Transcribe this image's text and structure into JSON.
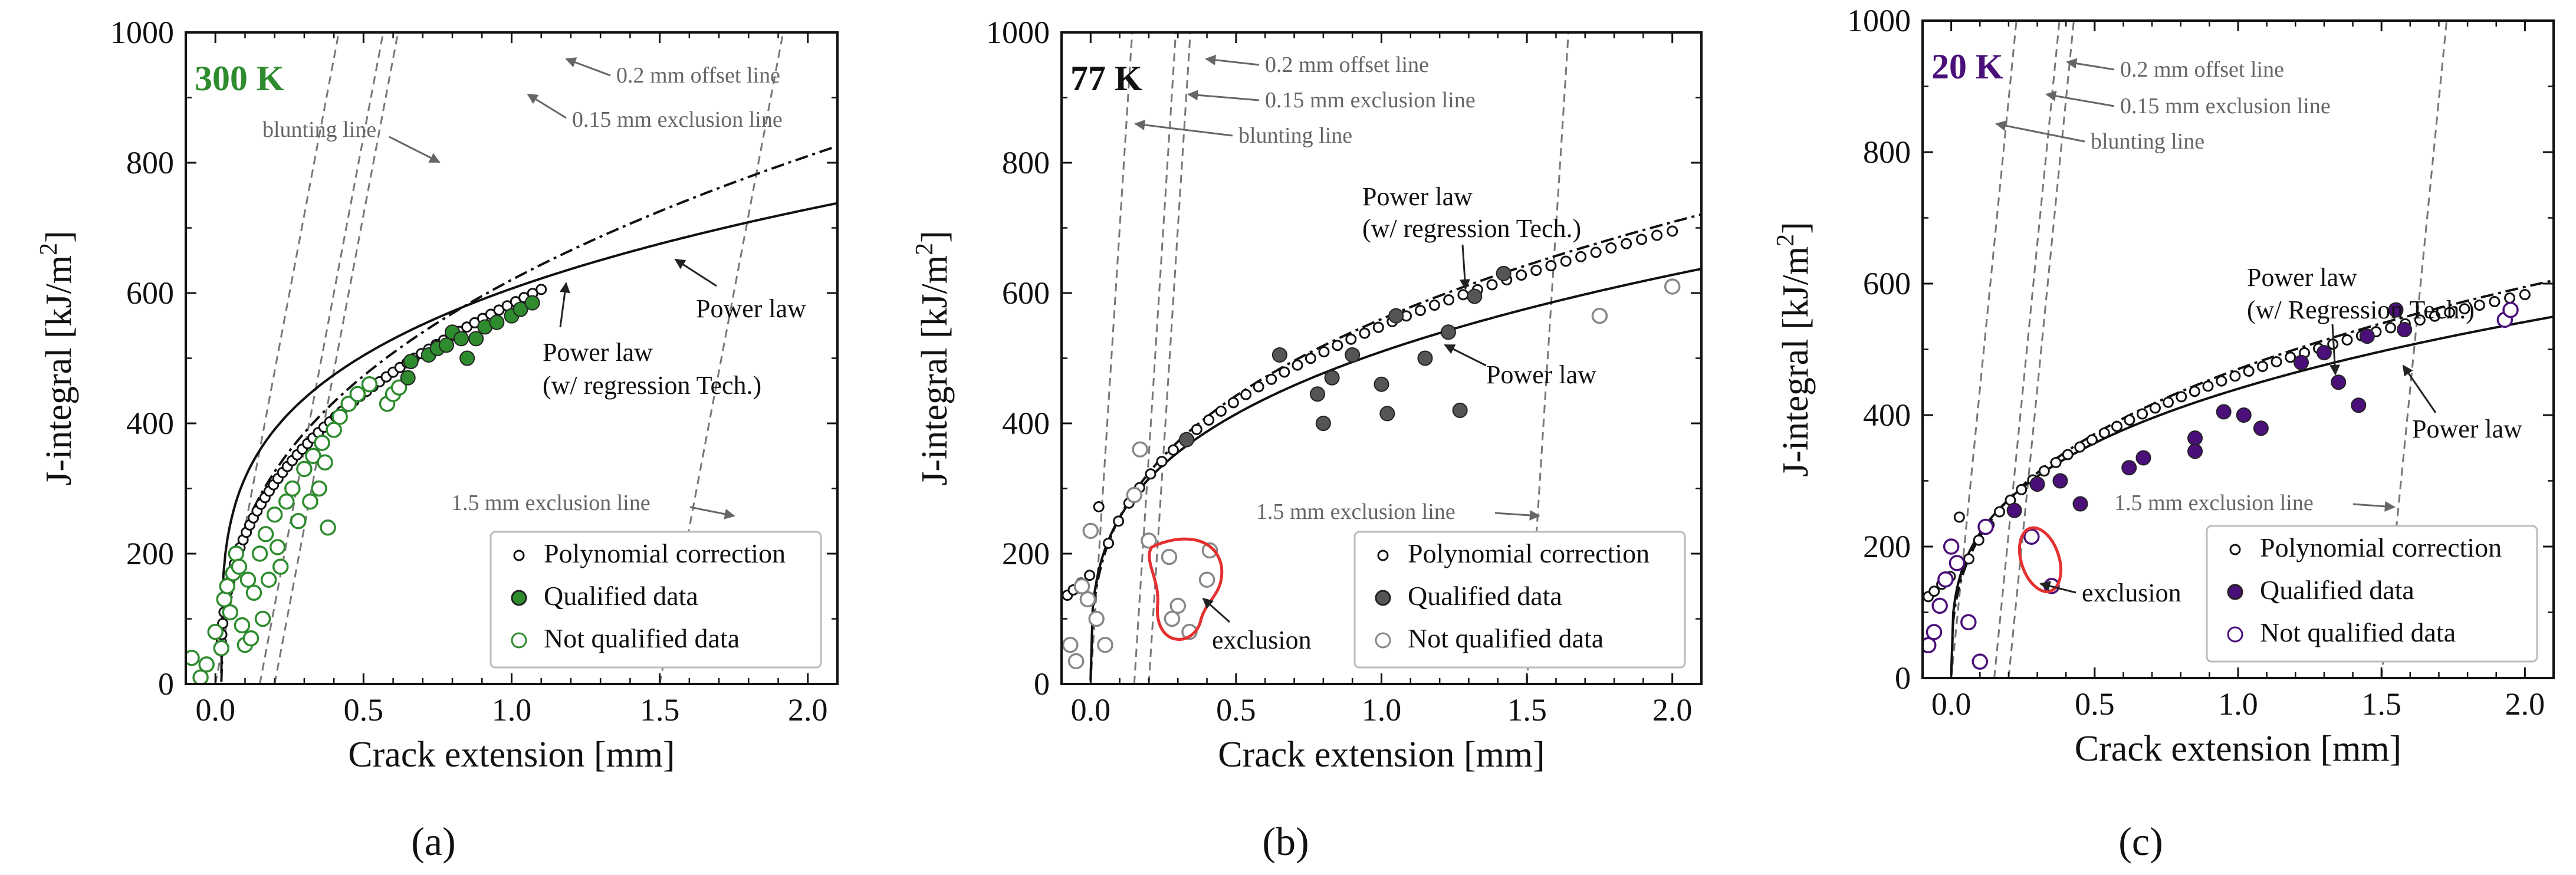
{
  "figure": {
    "panel_labels": [
      "(a)",
      "(b)",
      "(c)"
    ]
  },
  "chart_data": [
    {
      "type": "scatter",
      "panel": "(a)",
      "temperature_label": "300 K",
      "accent": "#2e8b2e",
      "xlabel": "Crack extension [mm]",
      "ylabel_main": "J-integral [kJ/m",
      "ylabel_sup": "2",
      "ylabel_end": "]",
      "xlim": [
        -0.1,
        2.1
      ],
      "ylim": [
        0,
        1000
      ],
      "xticks": [
        "0.0",
        "0.5",
        "1.0",
        "1.5",
        "2.0"
      ],
      "yticks": [
        "0",
        "200",
        "400",
        "600",
        "800",
        "1000"
      ],
      "legend": [
        "Polynomial correction",
        "Qualified data",
        "Not qualified data"
      ],
      "annotations": {
        "offset": "0.2 mm offset line",
        "excl015": "0.15 mm exclusion line",
        "blunting": "blunting line",
        "excl15": "1.5 mm exclusion line",
        "power": "Power law",
        "regress1": "Power law",
        "regress2": "(w/ regression Tech.)"
      },
      "power_law": {
        "C": 610,
        "n": 0.26,
        "x0": 0.02
      },
      "regression": {
        "C": 625,
        "n": 0.38,
        "x0": 0.02
      },
      "construction_lines": {
        "slope": 2400,
        "offsets": [
          0,
          0.15,
          0.2,
          1.5
        ]
      },
      "polynomial_range": [
        0.02,
        1.1
      ],
      "qualified": [
        [
          0.65,
          470
        ],
        [
          0.66,
          495
        ],
        [
          0.72,
          505
        ],
        [
          0.75,
          515
        ],
        [
          0.78,
          520
        ],
        [
          0.8,
          540
        ],
        [
          0.83,
          530
        ],
        [
          0.85,
          500
        ],
        [
          0.88,
          530
        ],
        [
          0.91,
          548
        ],
        [
          0.95,
          555
        ],
        [
          1.0,
          565
        ],
        [
          1.03,
          575
        ],
        [
          1.07,
          585
        ]
      ],
      "not_qualified": [
        [
          -0.08,
          40
        ],
        [
          -0.05,
          10
        ],
        [
          -0.03,
          30
        ],
        [
          0.0,
          80
        ],
        [
          0.02,
          55
        ],
        [
          0.03,
          130
        ],
        [
          0.04,
          150
        ],
        [
          0.05,
          110
        ],
        [
          0.06,
          170
        ],
        [
          0.07,
          200
        ],
        [
          0.08,
          180
        ],
        [
          0.09,
          90
        ],
        [
          0.1,
          60
        ],
        [
          0.11,
          160
        ],
        [
          0.12,
          70
        ],
        [
          0.13,
          140
        ],
        [
          0.15,
          200
        ],
        [
          0.16,
          100
        ],
        [
          0.17,
          230
        ],
        [
          0.18,
          160
        ],
        [
          0.2,
          260
        ],
        [
          0.21,
          210
        ],
        [
          0.22,
          180
        ],
        [
          0.24,
          280
        ],
        [
          0.26,
          300
        ],
        [
          0.28,
          250
        ],
        [
          0.3,
          330
        ],
        [
          0.32,
          280
        ],
        [
          0.33,
          350
        ],
        [
          0.35,
          300
        ],
        [
          0.36,
          370
        ],
        [
          0.37,
          340
        ],
        [
          0.38,
          240
        ],
        [
          0.4,
          390
        ],
        [
          0.42,
          410
        ],
        [
          0.45,
          430
        ],
        [
          0.48,
          445
        ],
        [
          0.52,
          460
        ],
        [
          0.58,
          430
        ],
        [
          0.6,
          445
        ],
        [
          0.62,
          455
        ]
      ]
    },
    {
      "type": "scatter",
      "panel": "(b)",
      "temperature_label": "77 K",
      "accent": "#111111",
      "xlabel": "Crack extension [mm]",
      "ylabel_main": "J-integral [kJ/m",
      "ylabel_sup": "2",
      "ylabel_end": "]",
      "xlim": [
        -0.1,
        2.1
      ],
      "ylim": [
        0,
        1000
      ],
      "xticks": [
        "0.0",
        "0.5",
        "1.0",
        "1.5",
        "2.0"
      ],
      "yticks": [
        "0",
        "200",
        "400",
        "600",
        "800",
        "1000"
      ],
      "legend": [
        "Polynomial correction",
        "Qualified data",
        "Not qualified data"
      ],
      "annotations": {
        "offset": "0.2 mm offset line",
        "excl015": "0.15 mm exclusion line",
        "blunting": "blunting line",
        "excl15": "1.5 mm exclusion line",
        "power": "Power law",
        "regress1": "Power law",
        "regress2": "(w/ regression Tech.)",
        "exclusion": "exclusion"
      },
      "power_law": {
        "C": 510,
        "n": 0.3,
        "x0": 0.0
      },
      "regression": {
        "C": 560,
        "n": 0.34,
        "x0": 0.0
      },
      "construction_lines": {
        "slope": 7000,
        "offsets": [
          0,
          0.15,
          0.2,
          1.5
        ]
      },
      "polynomial_range": [
        -0.08,
        2.0
      ],
      "qualified": [
        [
          0.33,
          375
        ],
        [
          0.65,
          505
        ],
        [
          0.78,
          445
        ],
        [
          0.8,
          400
        ],
        [
          0.83,
          470
        ],
        [
          0.9,
          505
        ],
        [
          1.0,
          460
        ],
        [
          1.02,
          415
        ],
        [
          1.05,
          565
        ],
        [
          1.15,
          500
        ],
        [
          1.23,
          540
        ],
        [
          1.27,
          420
        ],
        [
          1.32,
          595
        ],
        [
          1.42,
          630
        ]
      ],
      "not_qualified": [
        [
          -0.07,
          60
        ],
        [
          -0.05,
          35
        ],
        [
          -0.03,
          150
        ],
        [
          -0.01,
          130
        ],
        [
          0.0,
          235
        ],
        [
          0.02,
          100
        ],
        [
          0.05,
          60
        ],
        [
          0.15,
          290
        ],
        [
          0.17,
          360
        ],
        [
          0.2,
          220
        ],
        [
          0.27,
          195
        ],
        [
          0.28,
          100
        ],
        [
          0.3,
          120
        ],
        [
          0.34,
          80
        ],
        [
          0.4,
          160
        ],
        [
          0.41,
          205
        ],
        [
          1.75,
          565
        ],
        [
          2.0,
          610
        ]
      ]
    },
    {
      "type": "scatter",
      "panel": "(c)",
      "temperature_label": "20 K",
      "accent": "#4b0f7a",
      "xlabel": "Crack extension [mm]",
      "ylabel_main": "J-integral [kJ/m",
      "ylabel_sup": "2",
      "ylabel_end": "]",
      "xlim": [
        -0.1,
        2.1
      ],
      "ylim": [
        0,
        1000
      ],
      "xticks": [
        "0.0",
        "0.5",
        "1.0",
        "1.5",
        "2.0"
      ],
      "yticks": [
        "0",
        "200",
        "400",
        "600",
        "800",
        "1000"
      ],
      "legend": [
        "Polynomial correction",
        "Qualified data",
        "Not qualified data"
      ],
      "annotations": {
        "offset": "0.2 mm offset line",
        "excl015": "0.15 mm exclusion line",
        "blunting": "blunting line",
        "excl15": "1.5 mm exclusion line",
        "power": "Power law",
        "regress1": "Power law",
        "regress2": "(w/ Regression Tech.)",
        "exclusion": "exclusion"
      },
      "power_law": {
        "C": 440,
        "n": 0.3,
        "x0": 0.0
      },
      "regression": {
        "C": 470,
        "n": 0.34,
        "x0": 0.0
      },
      "construction_lines": {
        "slope": 4400,
        "offsets": [
          0,
          0.15,
          0.2,
          1.5
        ]
      },
      "polynomial_range": [
        -0.08,
        2.0
      ],
      "qualified": [
        [
          0.22,
          255
        ],
        [
          0.3,
          295
        ],
        [
          0.38,
          300
        ],
        [
          0.45,
          265
        ],
        [
          0.62,
          320
        ],
        [
          0.67,
          335
        ],
        [
          0.85,
          365
        ],
        [
          0.85,
          345
        ],
        [
          0.95,
          405
        ],
        [
          1.02,
          400
        ],
        [
          1.08,
          380
        ],
        [
          1.22,
          480
        ],
        [
          1.3,
          495
        ],
        [
          1.35,
          450
        ],
        [
          1.42,
          415
        ],
        [
          1.45,
          520
        ],
        [
          1.55,
          560
        ],
        [
          1.58,
          530
        ]
      ],
      "not_qualified": [
        [
          -0.08,
          50
        ],
        [
          -0.06,
          70
        ],
        [
          -0.04,
          110
        ],
        [
          -0.02,
          150
        ],
        [
          0.0,
          200
        ],
        [
          0.02,
          175
        ],
        [
          0.06,
          85
        ],
        [
          0.1,
          25
        ],
        [
          0.12,
          230
        ],
        [
          0.28,
          215
        ],
        [
          0.35,
          140
        ],
        [
          1.93,
          545
        ],
        [
          1.95,
          560
        ]
      ]
    }
  ]
}
